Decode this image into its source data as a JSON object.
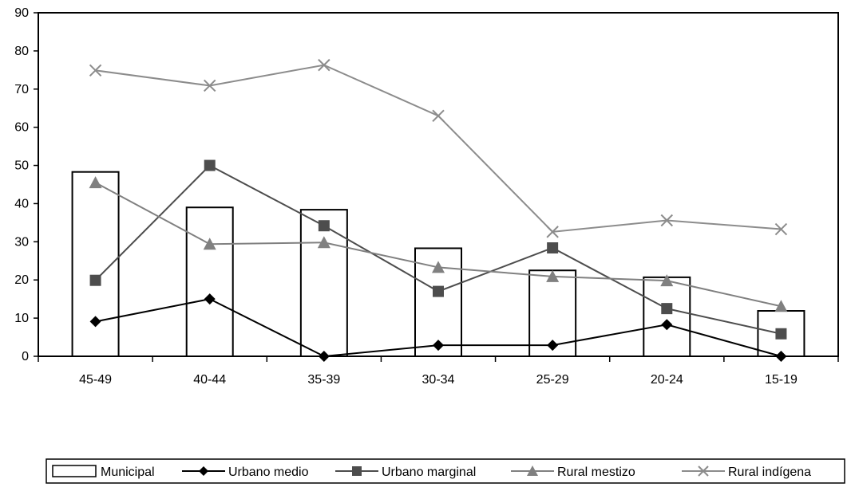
{
  "chart_data": {
    "type": "bar",
    "categories": [
      "45-49",
      "40-44",
      "35-39",
      "30-34",
      "25-29",
      "20-24",
      "15-19"
    ],
    "ylim": [
      0,
      90
    ],
    "yticks": [
      0,
      10,
      20,
      30,
      40,
      50,
      60,
      70,
      80,
      90
    ],
    "grid": false,
    "legend_position": "bottom",
    "series": [
      {
        "name": "Municipal",
        "kind": "bar",
        "color": "#ffffff",
        "stroke": "#000000",
        "marker": "none",
        "values": [
          48.3,
          39,
          38.4,
          28.3,
          22.5,
          20.7,
          11.9
        ]
      },
      {
        "name": "Urbano medio",
        "kind": "line",
        "color": "#000000",
        "marker": "diamond",
        "values": [
          9.1,
          15,
          0,
          2.9,
          2.9,
          8.3,
          0
        ]
      },
      {
        "name": "Urbano marginal",
        "kind": "line",
        "color": "#4d4d4d",
        "marker": "square",
        "values": [
          19.9,
          50,
          34.2,
          17,
          28.4,
          12.5,
          5.9
        ]
      },
      {
        "name": "Rural mestizo",
        "kind": "line",
        "color": "#808080",
        "marker": "triangle",
        "values": [
          45.5,
          29.4,
          29.8,
          23.3,
          20.9,
          19.8,
          13.1
        ]
      },
      {
        "name": "Rural indígena",
        "kind": "line",
        "color": "#8c8c8c",
        "marker": "x",
        "values": [
          74.9,
          70.9,
          76.3,
          63,
          32.6,
          35.6,
          33.3
        ]
      }
    ]
  }
}
